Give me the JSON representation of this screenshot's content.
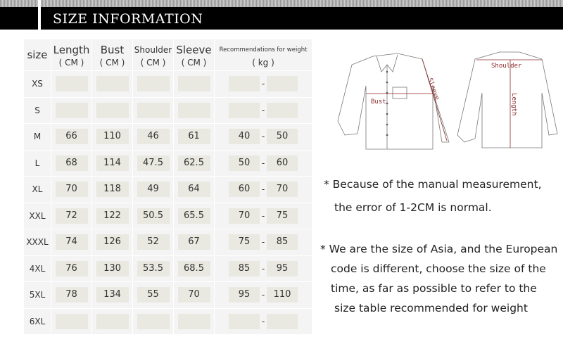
{
  "header": {
    "title": "SIZE INFORMATION"
  },
  "table": {
    "columns": [
      {
        "name": "size",
        "unit": ""
      },
      {
        "name": "Length",
        "unit": "( CM )"
      },
      {
        "name": "Bust",
        "unit": "( CM )"
      },
      {
        "name": "Shoulder",
        "unit": "( CM )"
      },
      {
        "name": "Sleeve",
        "unit": "( CM )"
      },
      {
        "name": "Recommendations for weight",
        "unit": "( kg )"
      }
    ],
    "rows": [
      {
        "size": "XS",
        "length": "",
        "bust": "",
        "shoulder": "",
        "sleeve": "",
        "w_min": "",
        "w_max": ""
      },
      {
        "size": "S",
        "length": "",
        "bust": "",
        "shoulder": "",
        "sleeve": "",
        "w_min": "",
        "w_max": ""
      },
      {
        "size": "M",
        "length": "66",
        "bust": "110",
        "shoulder": "46",
        "sleeve": "61",
        "w_min": "40",
        "w_max": "50"
      },
      {
        "size": "L",
        "length": "68",
        "bust": "114",
        "shoulder": "47.5",
        "sleeve": "62.5",
        "w_min": "50",
        "w_max": "60"
      },
      {
        "size": "XL",
        "length": "70",
        "bust": "118",
        "shoulder": "49",
        "sleeve": "64",
        "w_min": "60",
        "w_max": "70"
      },
      {
        "size": "XXL",
        "length": "72",
        "bust": "122",
        "shoulder": "50.5",
        "sleeve": "65.5",
        "w_min": "70",
        "w_max": "75"
      },
      {
        "size": "XXXL",
        "length": "74",
        "bust": "126",
        "shoulder": "52",
        "sleeve": "67",
        "w_min": "75",
        "w_max": "85"
      },
      {
        "size": "4XL",
        "length": "76",
        "bust": "130",
        "shoulder": "53.5",
        "sleeve": "68.5",
        "w_min": "85",
        "w_max": "95"
      },
      {
        "size": "5XL",
        "length": "78",
        "bust": "134",
        "shoulder": "55",
        "sleeve": "70",
        "w_min": "95",
        "w_max": "110"
      },
      {
        "size": "6XL",
        "length": "",
        "bust": "",
        "shoulder": "",
        "sleeve": "",
        "w_min": "",
        "w_max": ""
      }
    ]
  },
  "diagram": {
    "labels": {
      "bust": "Bust",
      "sleeve": "Sleeve",
      "shoulder": "Shoulder",
      "length": "Length"
    },
    "accent": "#8b2a2a"
  },
  "notes": {
    "note1": [
      "* Because of the manual measurement,",
      "the error of 1-2CM is normal."
    ],
    "note2": [
      "* We are the size of Asia, and the European",
      "code is different, choose the size of the",
      "time, as far as possible to refer to the",
      "size table recommended for weight"
    ]
  }
}
